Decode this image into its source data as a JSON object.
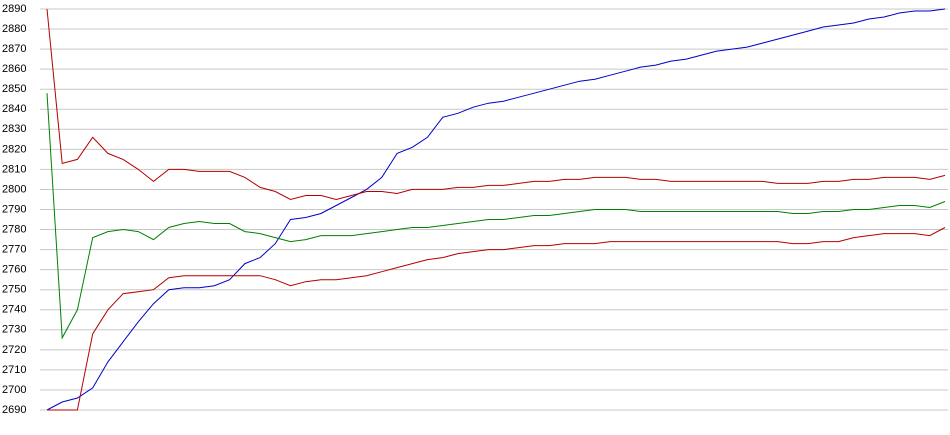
{
  "chart_data": {
    "type": "line",
    "ylim": [
      2690,
      2890
    ],
    "yticks": [
      2690,
      2700,
      2710,
      2720,
      2730,
      2740,
      2750,
      2760,
      2770,
      2780,
      2790,
      2800,
      2810,
      2820,
      2830,
      2840,
      2850,
      2860,
      2870,
      2880,
      2890
    ],
    "grid": true,
    "series": [
      {
        "color": "#0000c8",
        "values": [
          2690,
          2694,
          2696,
          2701,
          2714,
          2724,
          2734,
          2743,
          2750,
          2751,
          2751,
          2752,
          2755,
          2763,
          2766,
          2773,
          2785,
          2786,
          2788,
          2792,
          2796,
          2800,
          2806,
          2818,
          2821,
          2826,
          2836,
          2838,
          2841,
          2843,
          2844,
          2846,
          2848,
          2850,
          2852,
          2854,
          2855,
          2857,
          2859,
          2861,
          2862,
          2864,
          2865,
          2867,
          2869,
          2870,
          2871,
          2873,
          2875,
          2877,
          2879,
          2881,
          2882,
          2883,
          2885,
          2886,
          2888,
          2889,
          2889,
          2890
        ]
      },
      {
        "color": "#b40000",
        "values": [
          2890,
          2813,
          2815,
          2826,
          2818,
          2815,
          2810,
          2804,
          2810,
          2810,
          2809,
          2809,
          2809,
          2806,
          2801,
          2799,
          2795,
          2797,
          2797,
          2795,
          2797,
          2799,
          2799,
          2798,
          2800,
          2800,
          2800,
          2801,
          2801,
          2802,
          2802,
          2803,
          2804,
          2804,
          2805,
          2805,
          2806,
          2806,
          2806,
          2805,
          2805,
          2804,
          2804,
          2804,
          2804,
          2804,
          2804,
          2804,
          2803,
          2803,
          2803,
          2804,
          2804,
          2805,
          2805,
          2806,
          2806,
          2806,
          2805,
          2807
        ]
      },
      {
        "color": "#008000",
        "values": [
          2848,
          2726,
          2740,
          2776,
          2779,
          2780,
          2779,
          2775,
          2781,
          2783,
          2784,
          2783,
          2783,
          2779,
          2778,
          2776,
          2774,
          2775,
          2777,
          2777,
          2777,
          2778,
          2779,
          2780,
          2781,
          2781,
          2782,
          2783,
          2784,
          2785,
          2785,
          2786,
          2787,
          2787,
          2788,
          2789,
          2790,
          2790,
          2790,
          2789,
          2789,
          2789,
          2789,
          2789,
          2789,
          2789,
          2789,
          2789,
          2789,
          2788,
          2788,
          2789,
          2789,
          2790,
          2790,
          2791,
          2792,
          2792,
          2791,
          2794
        ]
      },
      {
        "color": "#b40000",
        "values": [
          2690,
          2690,
          2690,
          2728,
          2740,
          2748,
          2749,
          2750,
          2756,
          2757,
          2757,
          2757,
          2757,
          2757,
          2757,
          2755,
          2752,
          2754,
          2755,
          2755,
          2756,
          2757,
          2759,
          2761,
          2763,
          2765,
          2766,
          2768,
          2769,
          2770,
          2770,
          2771,
          2772,
          2772,
          2773,
          2773,
          2773,
          2774,
          2774,
          2774,
          2774,
          2774,
          2774,
          2774,
          2774,
          2774,
          2774,
          2774,
          2774,
          2773,
          2773,
          2774,
          2774,
          2776,
          2777,
          2778,
          2778,
          2778,
          2777,
          2781
        ]
      }
    ]
  }
}
